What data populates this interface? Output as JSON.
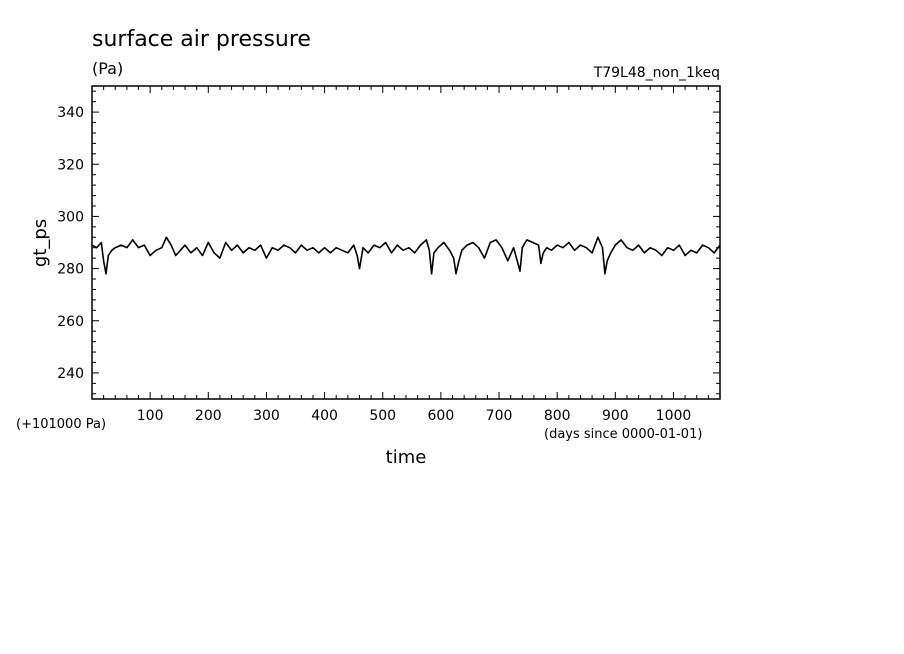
{
  "chart_data": {
    "type": "line",
    "title": "surface air pressure",
    "units": "(Pa)",
    "experiment": "T79L48_non_1keq",
    "ylabel": "gt_ps",
    "xlabel": "time",
    "y_offset_note": "(+101000 Pa)",
    "x_units_note": "(days since 0000-01-01)",
    "xlim": [
      0,
      1080
    ],
    "ylim": [
      230,
      350
    ],
    "x_ticks": [
      "100",
      "200",
      "300",
      "400",
      "500",
      "600",
      "700",
      "800",
      "900",
      "1000"
    ],
    "y_ticks": [
      "240",
      "260",
      "280",
      "300",
      "320",
      "340"
    ],
    "series": [
      {
        "x": [
          0,
          8,
          16,
          20,
          24,
          28,
          34,
          40,
          50,
          60,
          70,
          80,
          90,
          100,
          110,
          120,
          128,
          136,
          144,
          152,
          160,
          170,
          180,
          190,
          200,
          210,
          220,
          230,
          240,
          250,
          260,
          270,
          280,
          290,
          300,
          310,
          320,
          330,
          340,
          350,
          360,
          370,
          380,
          390,
          400,
          410,
          420,
          430,
          440,
          450,
          456,
          460,
          466,
          475,
          485,
          495,
          505,
          515,
          525,
          535,
          545,
          555,
          565,
          575,
          580,
          584,
          588,
          595,
          605,
          615,
          622,
          626,
          630,
          636,
          645,
          655,
          665,
          675,
          685,
          695,
          705,
          715,
          725,
          730,
          736,
          740,
          748,
          758,
          768,
          772,
          776,
          782,
          790,
          800,
          810,
          820,
          830,
          840,
          850,
          860,
          870,
          878,
          882,
          886,
          892,
          900,
          910,
          920,
          930,
          940,
          950,
          960,
          970,
          980,
          990,
          1000,
          1010,
          1020,
          1030,
          1040,
          1050,
          1060,
          1070,
          1080
        ],
        "y": [
          289,
          288,
          290,
          283,
          278,
          285,
          287,
          288,
          289,
          288,
          291,
          288,
          289,
          285,
          287,
          288,
          292,
          289,
          285,
          287,
          289,
          286,
          288,
          285,
          290,
          286,
          284,
          290,
          287,
          289,
          286,
          288,
          287,
          289,
          284,
          288,
          287,
          289,
          288,
          286,
          289,
          287,
          288,
          286,
          288,
          286,
          288,
          287,
          286,
          289,
          285,
          280,
          288,
          286,
          289,
          288,
          290,
          286,
          289,
          287,
          288,
          286,
          289,
          291,
          287,
          278,
          286,
          288,
          290,
          287,
          284,
          278,
          282,
          287,
          289,
          290,
          288,
          284,
          290,
          291,
          288,
          283,
          288,
          284,
          279,
          288,
          291,
          290,
          289,
          282,
          286,
          288,
          287,
          289,
          288,
          290,
          287,
          289,
          288,
          286,
          292,
          288,
          278,
          283,
          286,
          289,
          291,
          288,
          287,
          289,
          286,
          288,
          287,
          285,
          288,
          287,
          289,
          285,
          287,
          286,
          289,
          288,
          286,
          289
        ]
      }
    ]
  }
}
